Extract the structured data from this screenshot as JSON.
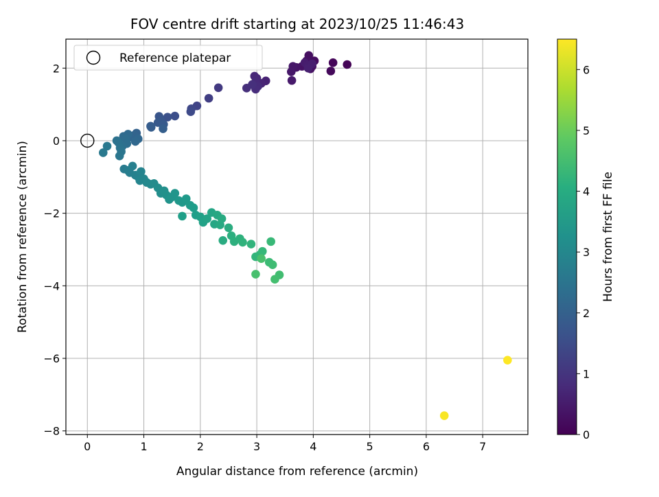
{
  "chart_data": {
    "type": "scatter",
    "title": "FOV centre drift starting at 2023/10/25 11:46:43",
    "xlabel": "Angular distance from reference (arcmin)",
    "ylabel": "Rotation from reference (arcmin)",
    "colorbar_label": "Hours from first FF file",
    "colormap": "viridis",
    "xlim": [
      -0.38,
      7.8
    ],
    "ylim": [
      -8.1,
      2.8
    ],
    "clim": [
      0,
      6.5
    ],
    "xticks": [
      0,
      1,
      2,
      3,
      4,
      5,
      6,
      7
    ],
    "yticks": [
      2,
      0,
      -2,
      -4,
      -6,
      -8
    ],
    "colorbar_ticks": [
      0,
      1,
      2,
      3,
      4,
      5,
      6
    ],
    "grid": true,
    "legend": {
      "position": "top-left",
      "label": "Reference platepar"
    },
    "reference_point": {
      "x": 0,
      "y": 0
    },
    "points": [
      {
        "x": 4.6,
        "y": 2.1,
        "c": 0.05
      },
      {
        "x": 4.35,
        "y": 2.15,
        "c": 0.1
      },
      {
        "x": 4.31,
        "y": 1.92,
        "c": 0.15
      },
      {
        "x": 4.02,
        "y": 2.2,
        "c": 0.2
      },
      {
        "x": 3.98,
        "y": 2.05,
        "c": 0.22
      },
      {
        "x": 3.92,
        "y": 2.35,
        "c": 0.25
      },
      {
        "x": 3.88,
        "y": 2.2,
        "c": 0.28
      },
      {
        "x": 3.95,
        "y": 1.98,
        "c": 0.3
      },
      {
        "x": 3.8,
        "y": 2.05,
        "c": 0.32
      },
      {
        "x": 3.7,
        "y": 2.02,
        "c": 0.36
      },
      {
        "x": 3.64,
        "y": 2.05,
        "c": 0.4
      },
      {
        "x": 3.61,
        "y": 1.9,
        "c": 0.43
      },
      {
        "x": 3.62,
        "y": 1.66,
        "c": 0.47
      },
      {
        "x": 3.85,
        "y": 2.15,
        "c": 0.5
      },
      {
        "x": 3.9,
        "y": 2.08,
        "c": 0.53
      },
      {
        "x": 3.98,
        "y": 2.12,
        "c": 0.55
      },
      {
        "x": 3.91,
        "y": 2.0,
        "c": 0.57
      },
      {
        "x": 3.16,
        "y": 1.65,
        "c": 0.62
      },
      {
        "x": 3.08,
        "y": 1.58,
        "c": 0.66
      },
      {
        "x": 3.0,
        "y": 1.72,
        "c": 0.7
      },
      {
        "x": 2.96,
        "y": 1.78,
        "c": 0.73
      },
      {
        "x": 2.98,
        "y": 1.62,
        "c": 0.76
      },
      {
        "x": 3.02,
        "y": 1.5,
        "c": 0.8
      },
      {
        "x": 2.98,
        "y": 1.42,
        "c": 0.83
      },
      {
        "x": 2.82,
        "y": 1.45,
        "c": 0.87
      },
      {
        "x": 2.92,
        "y": 1.55,
        "c": 0.9
      },
      {
        "x": 2.32,
        "y": 1.46,
        "c": 1.1
      },
      {
        "x": 2.15,
        "y": 1.17,
        "c": 1.2
      },
      {
        "x": 1.94,
        "y": 0.96,
        "c": 1.3
      },
      {
        "x": 1.84,
        "y": 0.88,
        "c": 1.38
      },
      {
        "x": 1.83,
        "y": 0.8,
        "c": 1.45
      },
      {
        "x": 1.55,
        "y": 0.68,
        "c": 1.55
      },
      {
        "x": 1.42,
        "y": 0.65,
        "c": 1.62
      },
      {
        "x": 1.27,
        "y": 0.67,
        "c": 1.7
      },
      {
        "x": 1.3,
        "y": 0.55,
        "c": 1.75
      },
      {
        "x": 1.25,
        "y": 0.5,
        "c": 1.8
      },
      {
        "x": 1.35,
        "y": 0.45,
        "c": 1.83
      },
      {
        "x": 1.12,
        "y": 0.4,
        "c": 1.87
      },
      {
        "x": 1.13,
        "y": 0.37,
        "c": 1.9
      },
      {
        "x": 1.34,
        "y": 0.33,
        "c": 1.93
      },
      {
        "x": 0.87,
        "y": 0.21,
        "c": 2.02
      },
      {
        "x": 0.83,
        "y": 0.15,
        "c": 2.06
      },
      {
        "x": 0.76,
        "y": 0.1,
        "c": 2.1
      },
      {
        "x": 0.9,
        "y": 0.05,
        "c": 2.14
      },
      {
        "x": 0.85,
        "y": -0.02,
        "c": 2.18
      },
      {
        "x": 0.72,
        "y": 0.18,
        "c": 2.22
      },
      {
        "x": 0.64,
        "y": 0.12,
        "c": 2.26
      },
      {
        "x": 0.68,
        "y": 0.05,
        "c": 2.3
      },
      {
        "x": 0.7,
        "y": -0.08,
        "c": 2.34
      },
      {
        "x": 0.62,
        "y": -0.15,
        "c": 2.38
      },
      {
        "x": 0.55,
        "y": -0.05,
        "c": 2.42
      },
      {
        "x": 0.52,
        "y": 0.0,
        "c": 2.45
      },
      {
        "x": 0.58,
        "y": -0.2,
        "c": 2.48
      },
      {
        "x": 0.6,
        "y": -0.3,
        "c": 2.52
      },
      {
        "x": 0.57,
        "y": -0.42,
        "c": 2.56
      },
      {
        "x": 0.35,
        "y": -0.15,
        "c": 2.6
      },
      {
        "x": 0.28,
        "y": -0.33,
        "c": 2.63
      },
      {
        "x": 0.65,
        "y": -0.78,
        "c": 2.7
      },
      {
        "x": 0.72,
        "y": -0.82,
        "c": 2.74
      },
      {
        "x": 0.75,
        "y": -0.88,
        "c": 2.78
      },
      {
        "x": 0.8,
        "y": -0.7,
        "c": 2.82
      },
      {
        "x": 0.85,
        "y": -0.95,
        "c": 2.86
      },
      {
        "x": 0.9,
        "y": -1.0,
        "c": 2.9
      },
      {
        "x": 0.95,
        "y": -0.85,
        "c": 2.93
      },
      {
        "x": 0.93,
        "y": -1.1,
        "c": 2.96
      },
      {
        "x": 1.0,
        "y": -1.05,
        "c": 3.0
      },
      {
        "x": 1.05,
        "y": -1.15,
        "c": 3.04
      },
      {
        "x": 1.12,
        "y": -1.2,
        "c": 3.08
      },
      {
        "x": 1.18,
        "y": -1.18,
        "c": 3.12
      },
      {
        "x": 1.25,
        "y": -1.3,
        "c": 3.16
      },
      {
        "x": 1.3,
        "y": -1.45,
        "c": 3.2
      },
      {
        "x": 1.36,
        "y": -1.38,
        "c": 3.24
      },
      {
        "x": 1.4,
        "y": -1.5,
        "c": 3.28
      },
      {
        "x": 1.45,
        "y": -1.62,
        "c": 3.32
      },
      {
        "x": 1.5,
        "y": -1.55,
        "c": 3.35
      },
      {
        "x": 1.55,
        "y": -1.45,
        "c": 3.38
      },
      {
        "x": 1.62,
        "y": -1.65,
        "c": 3.42
      },
      {
        "x": 1.68,
        "y": -1.7,
        "c": 3.46
      },
      {
        "x": 1.75,
        "y": -1.6,
        "c": 3.5
      },
      {
        "x": 1.82,
        "y": -1.78,
        "c": 3.54
      },
      {
        "x": 1.88,
        "y": -1.85,
        "c": 3.58
      },
      {
        "x": 1.92,
        "y": -2.05,
        "c": 3.62
      },
      {
        "x": 1.68,
        "y": -2.08,
        "c": 3.65
      },
      {
        "x": 2.0,
        "y": -2.1,
        "c": 3.68
      },
      {
        "x": 2.05,
        "y": -2.25,
        "c": 3.72
      },
      {
        "x": 2.12,
        "y": -2.15,
        "c": 3.76
      },
      {
        "x": 2.2,
        "y": -1.98,
        "c": 3.8
      },
      {
        "x": 2.25,
        "y": -2.3,
        "c": 3.84
      },
      {
        "x": 2.3,
        "y": -2.05,
        "c": 3.88
      },
      {
        "x": 2.35,
        "y": -2.32,
        "c": 3.92
      },
      {
        "x": 2.38,
        "y": -2.15,
        "c": 3.95
      },
      {
        "x": 2.4,
        "y": -2.75,
        "c": 3.98
      },
      {
        "x": 2.5,
        "y": -2.4,
        "c": 4.02
      },
      {
        "x": 2.55,
        "y": -2.62,
        "c": 4.06
      },
      {
        "x": 2.6,
        "y": -2.78,
        "c": 4.1
      },
      {
        "x": 2.7,
        "y": -2.7,
        "c": 4.14
      },
      {
        "x": 2.75,
        "y": -2.8,
        "c": 4.18
      },
      {
        "x": 2.9,
        "y": -2.85,
        "c": 4.22
      },
      {
        "x": 2.98,
        "y": -3.2,
        "c": 4.26
      },
      {
        "x": 3.05,
        "y": -3.15,
        "c": 4.3
      },
      {
        "x": 3.1,
        "y": -3.05,
        "c": 4.34
      },
      {
        "x": 3.25,
        "y": -2.78,
        "c": 4.38
      },
      {
        "x": 3.22,
        "y": -3.35,
        "c": 4.42
      },
      {
        "x": 3.28,
        "y": -3.42,
        "c": 4.46
      },
      {
        "x": 3.4,
        "y": -3.7,
        "c": 4.5
      },
      {
        "x": 3.32,
        "y": -3.82,
        "c": 4.54
      },
      {
        "x": 2.98,
        "y": -3.68,
        "c": 4.58
      },
      {
        "x": 3.08,
        "y": -3.25,
        "c": 4.6
      },
      {
        "x": 6.32,
        "y": -7.58,
        "c": 6.45
      },
      {
        "x": 7.44,
        "y": -6.05,
        "c": 6.5
      }
    ]
  }
}
